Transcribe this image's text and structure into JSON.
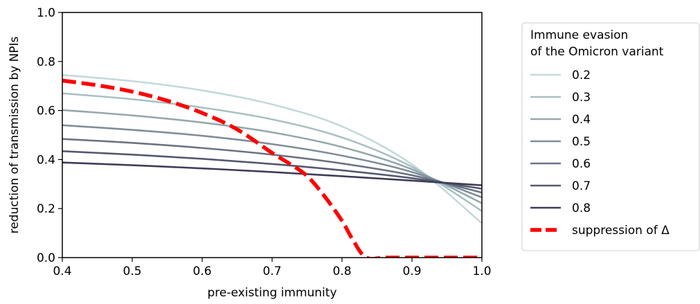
{
  "chart_data": {
    "type": "line",
    "xlabel": "pre-existing immunity",
    "ylabel": "reduction of transmission by NPIs",
    "xlim": [
      0.4,
      1.0
    ],
    "ylim": [
      0.0,
      1.0
    ],
    "xticks": [
      0.4,
      0.5,
      0.6,
      0.7,
      0.8,
      0.9,
      1.0
    ],
    "yticks": [
      0.0,
      0.2,
      0.4,
      0.6,
      0.8,
      1.0
    ],
    "xtick_labels": [
      "0.4",
      "0.5",
      "0.6",
      "0.7",
      "0.8",
      "0.9",
      "1.0"
    ],
    "ytick_labels": [
      "0.0",
      "0.2",
      "0.4",
      "0.6",
      "0.8",
      "1.0"
    ],
    "grid": false,
    "legend": {
      "placement": "outside-right",
      "title_lines": [
        "Immune evasion",
        "of the Omicron variant"
      ]
    },
    "series": [
      {
        "name": "0.2",
        "color": "#c4d9d9",
        "x": [
          0.4,
          0.5,
          0.6,
          0.7,
          0.8,
          0.9,
          1.0
        ],
        "y": [
          0.745,
          0.72,
          0.682,
          0.625,
          0.535,
          0.38,
          0.14
        ]
      },
      {
        "name": "0.3",
        "color": "#a9c0c2",
        "x": [
          0.4,
          0.5,
          0.6,
          0.7,
          0.8,
          0.9,
          1.0
        ],
        "y": [
          0.67,
          0.646,
          0.612,
          0.564,
          0.49,
          0.37,
          0.19
        ]
      },
      {
        "name": "0.4",
        "color": "#95a8ad",
        "x": [
          0.4,
          0.5,
          0.6,
          0.7,
          0.8,
          0.9,
          1.0
        ],
        "y": [
          0.602,
          0.58,
          0.551,
          0.511,
          0.451,
          0.36,
          0.222
        ]
      },
      {
        "name": "0.5",
        "color": "#808e99",
        "x": [
          0.4,
          0.5,
          0.6,
          0.7,
          0.8,
          0.9,
          1.0
        ],
        "y": [
          0.54,
          0.521,
          0.497,
          0.463,
          0.416,
          0.349,
          0.246
        ]
      },
      {
        "name": "0.6",
        "color": "#6b7384",
        "x": [
          0.4,
          0.5,
          0.6,
          0.7,
          0.8,
          0.9,
          1.0
        ],
        "y": [
          0.484,
          0.468,
          0.447,
          0.42,
          0.384,
          0.336,
          0.265
        ]
      },
      {
        "name": "0.7",
        "color": "#555870",
        "x": [
          0.4,
          0.5,
          0.6,
          0.7,
          0.8,
          0.9,
          1.0
        ],
        "y": [
          0.434,
          0.42,
          0.403,
          0.382,
          0.356,
          0.324,
          0.281
        ]
      },
      {
        "name": "0.8",
        "color": "#3e3d59",
        "x": [
          0.4,
          0.5,
          0.6,
          0.7,
          0.8,
          0.9,
          1.0
        ],
        "y": [
          0.388,
          0.377,
          0.364,
          0.349,
          0.332,
          0.314,
          0.295
        ]
      }
    ],
    "dashed_series": {
      "name": "suppression of Δ",
      "color": "#ff0000",
      "x": [
        0.4,
        0.45,
        0.5,
        0.55,
        0.6,
        0.65,
        0.7,
        0.725,
        0.75,
        0.775,
        0.8,
        0.815,
        0.835,
        0.87,
        1.0
      ],
      "y": [
        0.722,
        0.703,
        0.677,
        0.64,
        0.59,
        0.523,
        0.427,
        0.383,
        0.333,
        0.25,
        0.15,
        0.075,
        0.0,
        0.0,
        0.0
      ]
    }
  }
}
